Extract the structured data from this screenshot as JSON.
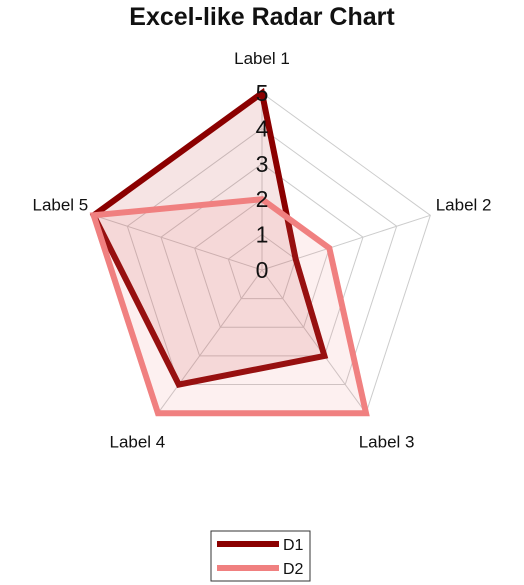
{
  "chart_data": {
    "type": "radar",
    "title": "Excel-like Radar Chart",
    "categories": [
      "Label 1",
      "Label 2",
      "Label 3",
      "Label 4",
      "Label 5"
    ],
    "ticks": [
      "0",
      "1",
      "2",
      "3",
      "4",
      "5"
    ],
    "rlim": [
      0,
      5
    ],
    "grid": true,
    "legend_position": "bottom",
    "series": [
      {
        "name": "D1",
        "values": [
          5,
          1,
          3,
          4,
          5
        ],
        "color": "#8b0000",
        "fill": "#b22222"
      },
      {
        "name": "D2",
        "values": [
          2,
          2,
          5,
          5,
          5
        ],
        "color": "#f08080",
        "fill": "#f08080"
      }
    ]
  }
}
